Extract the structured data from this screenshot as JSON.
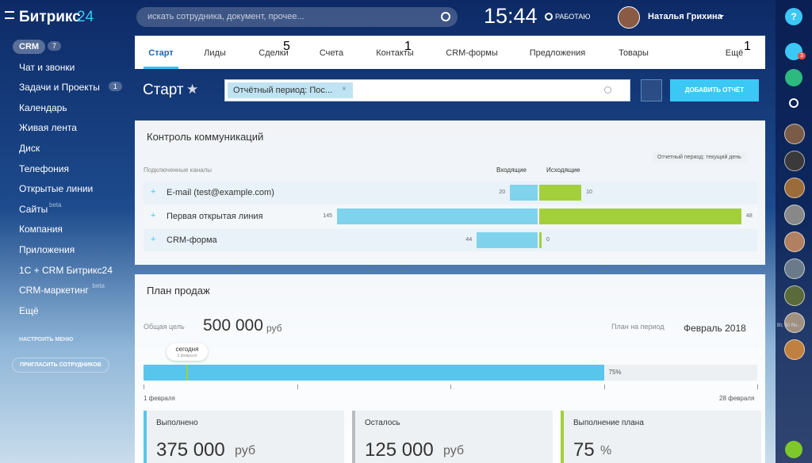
{
  "logo": {
    "name": "Битрикс",
    "num": "24"
  },
  "search_placeholder": "искать сотрудника, документ, прочее...",
  "clock": "15:44",
  "status": "РАБОТАЮ",
  "user": "Наталья Грихина",
  "sidebar": {
    "items": [
      {
        "label": "CRM",
        "badge": "7"
      },
      {
        "label": "Чат и звонки"
      },
      {
        "label": "Задачи и Проекты",
        "badge": "1"
      },
      {
        "label": "Календарь"
      },
      {
        "label": "Живая лента"
      },
      {
        "label": "Диск"
      },
      {
        "label": "Телефония"
      },
      {
        "label": "Открытые линии"
      },
      {
        "label": "Сайты",
        "sup": "beta"
      },
      {
        "label": "Компания"
      },
      {
        "label": "Приложения"
      },
      {
        "label": "1С + CRM Битрикс24"
      },
      {
        "label": "CRM-маркетинг",
        "sup": "beta"
      },
      {
        "label": "Ещё"
      }
    ],
    "configure": "НАСТРОИТЬ МЕНЮ",
    "invite": "ПРИГЛАСИТЬ СОТРУДНИКОВ"
  },
  "tabs": [
    {
      "label": "Старт"
    },
    {
      "label": "Лиды"
    },
    {
      "label": "Сделки",
      "badge": "5"
    },
    {
      "label": "Счета"
    },
    {
      "label": "Контакты",
      "badge": "1"
    },
    {
      "label": "CRM-формы"
    },
    {
      "label": "Предложения"
    },
    {
      "label": "Товары"
    },
    {
      "label": "Ещё",
      "badge": "1"
    }
  ],
  "toolbar": {
    "title": "Старт",
    "filter": "Отчётный период: Пос...",
    "add_button": "ДОБАВИТЬ ОТЧЁТ"
  },
  "communications": {
    "title": "Контроль коммуникаций",
    "period": "Отчетный период: текущий день",
    "headers": {
      "channels": "Подключенные каналы",
      "incoming": "Входящие",
      "outgoing": "Исходящие"
    },
    "rows": [
      {
        "name": "E-mail (test@example.com)",
        "incoming": 20,
        "outgoing": 10
      },
      {
        "name": "Первая открытая линия",
        "incoming": 145,
        "outgoing": 48
      },
      {
        "name": "CRM-форма",
        "incoming": 44,
        "outgoing": 0
      }
    ]
  },
  "sales": {
    "title": "План продаж",
    "goal_label": "Общая цель",
    "goal": "500 000",
    "currency": "руб",
    "period_label": "План на период",
    "period": "Февраль 2018",
    "today": "сегодня",
    "today_date": "3 февраля",
    "progress": {
      "value": 75,
      "label": "75%",
      "xlim": [
        0,
        100
      ]
    },
    "start": "1 февраля",
    "end": "28 февраля",
    "cards": [
      {
        "title": "Выполнено",
        "value": "375 000",
        "unit": "руб"
      },
      {
        "title": "Осталось",
        "value": "125 000",
        "unit": "руб"
      },
      {
        "title": "Выполнение плана",
        "value": "75",
        "unit": "%"
      }
    ]
  },
  "right_bar": {
    "chat_badge": "3",
    "date": "Вт, 30 Ян..."
  }
}
